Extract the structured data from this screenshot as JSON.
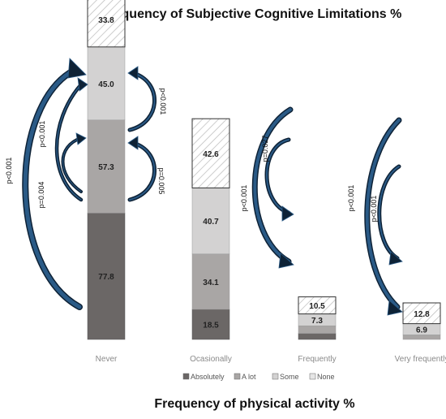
{
  "chart_data": {
    "type": "bar",
    "title": "Frequency of Subjective Cognitive Limitations %",
    "xlabel": "Frequency of physical activity %",
    "categories": [
      "Never",
      "Ocasionally",
      "Frequently",
      "Very frequently"
    ],
    "series": [
      {
        "name": "Absolutely",
        "values": [
          77.8,
          18.5,
          3.7,
          0.0
        ]
      },
      {
        "name": "A lot",
        "values": [
          57.3,
          34.1,
          4.7,
          2.8
        ]
      },
      {
        "name": "Some",
        "values": [
          45.0,
          40.7,
          7.3,
          6.9
        ]
      },
      {
        "name": "None",
        "values": [
          33.8,
          42.6,
          10.5,
          12.8
        ]
      }
    ],
    "colors": {
      "Absolutely": "#6b6766",
      "A lot": "#a9a6a5",
      "Some": "#d3d2d2",
      "None": "hatched"
    },
    "p_values": [
      {
        "category": "Never",
        "label": "p<0.001"
      },
      {
        "category": "Never",
        "label": "p<0.001"
      },
      {
        "category": "Never",
        "label": "p=0.004"
      },
      {
        "category": "Never",
        "label": "p<0.001"
      },
      {
        "category": "Never",
        "label": "p=0.005"
      },
      {
        "category": "Frequently",
        "label": "p<0.001"
      },
      {
        "category": "Frequently",
        "label": "p=0.027"
      },
      {
        "category": "Very frequently",
        "label": "p<0.001"
      },
      {
        "category": "Very frequently",
        "label": "p<0.001"
      }
    ],
    "legend_position": "bottom",
    "stacked": true
  }
}
